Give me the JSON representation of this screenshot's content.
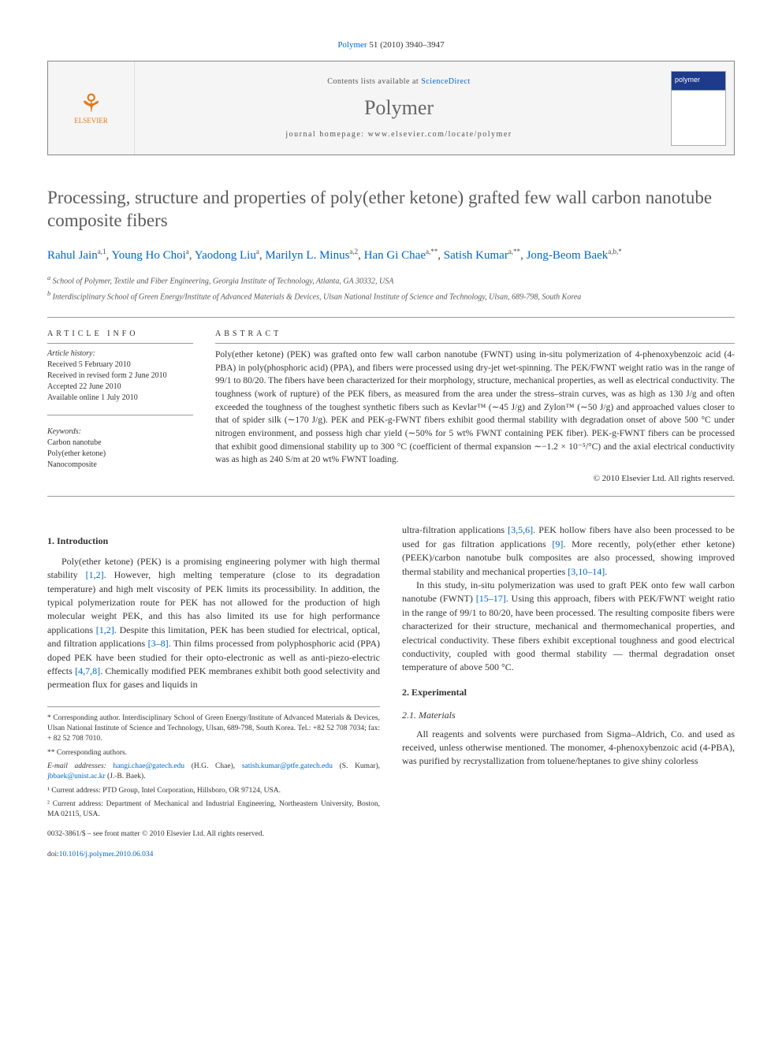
{
  "citation": {
    "journal": "Polymer",
    "vol_pages": "51 (2010) 3940–3947"
  },
  "header": {
    "contents_text": "Contents lists available at",
    "contents_link": "ScienceDirect",
    "journal_name": "Polymer",
    "homepage_label": "journal homepage:",
    "homepage_url": "www.elsevier.com/locate/polymer",
    "publisher_name": "ELSEVIER"
  },
  "title": "Processing, structure and properties of poly(ether ketone) grafted few wall carbon nanotube composite fibers",
  "authors_line": {
    "a1": "Rahul Jain",
    "a1sup": "a,1",
    "a2": "Young Ho Choi",
    "a2sup": "a",
    "a3": "Yaodong Liu",
    "a3sup": "a",
    "a4": "Marilyn L. Minus",
    "a4sup": "a,2",
    "a5": "Han Gi Chae",
    "a5sup": "a,**",
    "a6": "Satish Kumar",
    "a6sup": "a,**",
    "a7": "Jong-Beom Baek",
    "a7sup": "a,b,*"
  },
  "affiliations": {
    "a": "School of Polymer, Textile and Fiber Engineering, Georgia Institute of Technology, Atlanta, GA 30332, USA",
    "b": "Interdisciplinary School of Green Energy/Institute of Advanced Materials & Devices, Ulsan National Institute of Science and Technology, Ulsan, 689-798, South Korea"
  },
  "article_info": {
    "head": "ARTICLE INFO",
    "history_label": "Article history:",
    "received": "Received 5 February 2010",
    "revised": "Received in revised form 2 June 2010",
    "accepted": "Accepted 22 June 2010",
    "online": "Available online 1 July 2010",
    "keywords_label": "Keywords:",
    "kw1": "Carbon nanotube",
    "kw2": "Poly(ether ketone)",
    "kw3": "Nanocomposite"
  },
  "abstract": {
    "head": "ABSTRACT",
    "text": "Poly(ether ketone) (PEK) was grafted onto few wall carbon nanotube (FWNT) using in-situ polymerization of 4-phenoxybenzoic acid (4-PBA) in poly(phosphoric acid) (PPA), and fibers were processed using dry-jet wet-spinning. The PEK/FWNT weight ratio was in the range of 99/1 to 80/20. The fibers have been characterized for their morphology, structure, mechanical properties, as well as electrical conductivity. The toughness (work of rupture) of the PEK fibers, as measured from the area under the stress–strain curves, was as high as 130 J/g and often exceeded the toughness of the toughest synthetic fibers such as Kevlar™ (∼45 J/g) and Zylon™ (∼50 J/g) and approached values closer to that of spider silk (∼170 J/g). PEK and PEK-g-FWNT fibers exhibit good thermal stability with degradation onset of above 500 °C under nitrogen environment, and possess high char yield (∼50% for 5 wt% FWNT containing PEK fiber). PEK-g-FWNT fibers can be processed that exhibit good dimensional stability up to 300 °C (coefficient of thermal expansion ∼−1.2 × 10⁻⁵/°C) and the axial electrical conductivity was as high as 240 S/m at 20 wt% FWNT loading.",
    "copyright": "© 2010 Elsevier Ltd. All rights reserved."
  },
  "body": {
    "intro_head": "1.  Introduction",
    "intro_p1a": "Poly(ether ketone) (PEK) is a promising engineering polymer with high thermal stability ",
    "intro_p1_link1": "[1,2]",
    "intro_p1b": ". However, high melting temperature (close to its degradation temperature) and high melt viscosity of PEK limits its processibility. In addition, the typical polymerization route for PEK has not allowed for the production of high molecular weight PEK, and this has also limited its use for high performance applications ",
    "intro_p1_link2": "[1,2]",
    "intro_p1c": ". Despite this limitation, PEK has been studied for electrical, optical, and filtration applications ",
    "intro_p1_link3": "[3–8]",
    "intro_p1d": ". Thin films processed from polyphosphoric acid (PPA) doped PEK have been studied for their opto-electronic as well as anti-piezo-electric effects ",
    "intro_p1_link4": "[4,7,8]",
    "intro_p1e": ". Chemically modified PEK membranes exhibit both good selectivity and permeation flux for gases and liquids in",
    "col2_p1a": "ultra-filtration applications ",
    "col2_p1_link1": "[3,5,6]",
    "col2_p1b": ". PEK hollow fibers have also been processed to be used for gas filtration applications ",
    "col2_p1_link2": "[9]",
    "col2_p1c": ". More recently, poly(ether ether ketone) (PEEK)/carbon nanotube bulk composites are also processed, showing improved thermal stability and mechanical properties ",
    "col2_p1_link3": "[3,10–14]",
    "col2_p1d": ".",
    "col2_p2a": "In this study, in-situ polymerization was used to graft PEK onto few wall carbon nanotube (FWNT) ",
    "col2_p2_link1": "[15–17]",
    "col2_p2b": ". Using this approach, fibers with PEK/FWNT weight ratio in the range of 99/1 to 80/20, have been processed. The resulting composite fibers were characterized for their structure, mechanical and thermomechanical properties, and electrical conductivity. These fibers exhibit exceptional toughness and good electrical conductivity, coupled with good thermal stability — thermal degradation onset temperature of above 500 °C.",
    "exp_head": "2.  Experimental",
    "mat_head": "2.1.  Materials",
    "mat_p1": "All reagents and solvents were purchased from Sigma–Aldrich, Co. and used as received, unless otherwise mentioned. The monomer, 4-phenoxybenzoic acid (4-PBA), was purified by recrystallization from toluene/heptanes to give shiny colorless"
  },
  "footnotes": {
    "corr1": "* Corresponding author. Interdisciplinary School of Green Energy/Institute of Advanced Materials & Devices, Ulsan National Institute of Science and Technology, Ulsan, 689-798, South Korea. Tel.: +82 52 708 7034; fax: + 82 52 708 7010.",
    "corr2": "** Corresponding authors.",
    "email_label": "E-mail addresses:",
    "email1": "hangi.chae@gatech.edu",
    "email1_who": " (H.G. Chae), ",
    "email2": "satish.kumar@ptfe.gatech.edu",
    "email2_who": " (S. Kumar), ",
    "email3": "jbbaek@unist.ac.kr",
    "email3_who": " (J.-B. Baek).",
    "addr1": "¹ Current address: PTD Group, Intel Corporation, Hillsboro, OR 97124, USA.",
    "addr2": "² Current address: Department of Mechanical and Industrial Engineering, Northeastern University, Boston, MA 02115, USA."
  },
  "bottom": {
    "issn": "0032-3861/$ – see front matter © 2010 Elsevier Ltd. All rights reserved.",
    "doi_label": "doi:",
    "doi": "10.1016/j.polymer.2010.06.034"
  },
  "colors": {
    "link": "#0066cc",
    "heading_gray": "#5a5a5a",
    "elsevier_orange": "#e67817"
  }
}
